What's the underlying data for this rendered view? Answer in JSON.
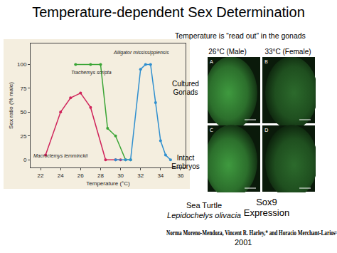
{
  "title": "Temperature-dependent Sex Determination",
  "chart_data": {
    "type": "line",
    "x_title": "Temperature (°C)",
    "y_title": "Sex ratio (% male)",
    "xlim": [
      21,
      36.5
    ],
    "xticks": [
      22,
      24,
      26,
      28,
      30,
      32,
      34,
      36
    ],
    "ylim": [
      -8,
      122
    ],
    "yticks": [
      0,
      25,
      50,
      75,
      100
    ],
    "grid": false,
    "marker": "circle",
    "series": [
      {
        "name": "Macroclemys temminckii",
        "color": "#d0245b",
        "x": [
          22.5,
          24,
          25,
          26,
          27,
          28.5,
          29.5,
          30
        ],
        "values": [
          5,
          50,
          65,
          70,
          55,
          0,
          0,
          0
        ]
      },
      {
        "name": "Trachemys scripta",
        "color": "#3aa535",
        "x": [
          25.5,
          27,
          28,
          28.7,
          29.5,
          30.5,
          31
        ],
        "values": [
          100,
          100,
          100,
          33,
          25,
          0,
          0
        ]
      },
      {
        "name": "Alligator mississippiensis",
        "color": "#2f8fcf",
        "x": [
          29.5,
          30.5,
          31,
          32,
          32.5,
          33,
          33.5,
          34,
          34.5,
          35
        ],
        "values": [
          0,
          0,
          0,
          95,
          100,
          100,
          60,
          20,
          5,
          0
        ]
      }
    ]
  },
  "gonad_figure": {
    "heading": "Temperature is “read out” in the gonads",
    "columns": [
      "26°C (Male)",
      "33°C (Female)"
    ],
    "rows": [
      [
        "Cultured",
        "Gonads"
      ],
      [
        "Intact",
        "Embryos"
      ]
    ],
    "panels": [
      "A",
      "B",
      "C",
      "D"
    ]
  },
  "species_caption": [
    "Sea Turtle",
    "Lepidochelys olivacia"
  ],
  "stain_caption": [
    "Sox9",
    "Expression"
  ],
  "citation": {
    "authors": "Norma Moreno-Mendoza, Vincent R. Harley,* and Horacio Merchant-Larios¹",
    "year": "2001"
  }
}
